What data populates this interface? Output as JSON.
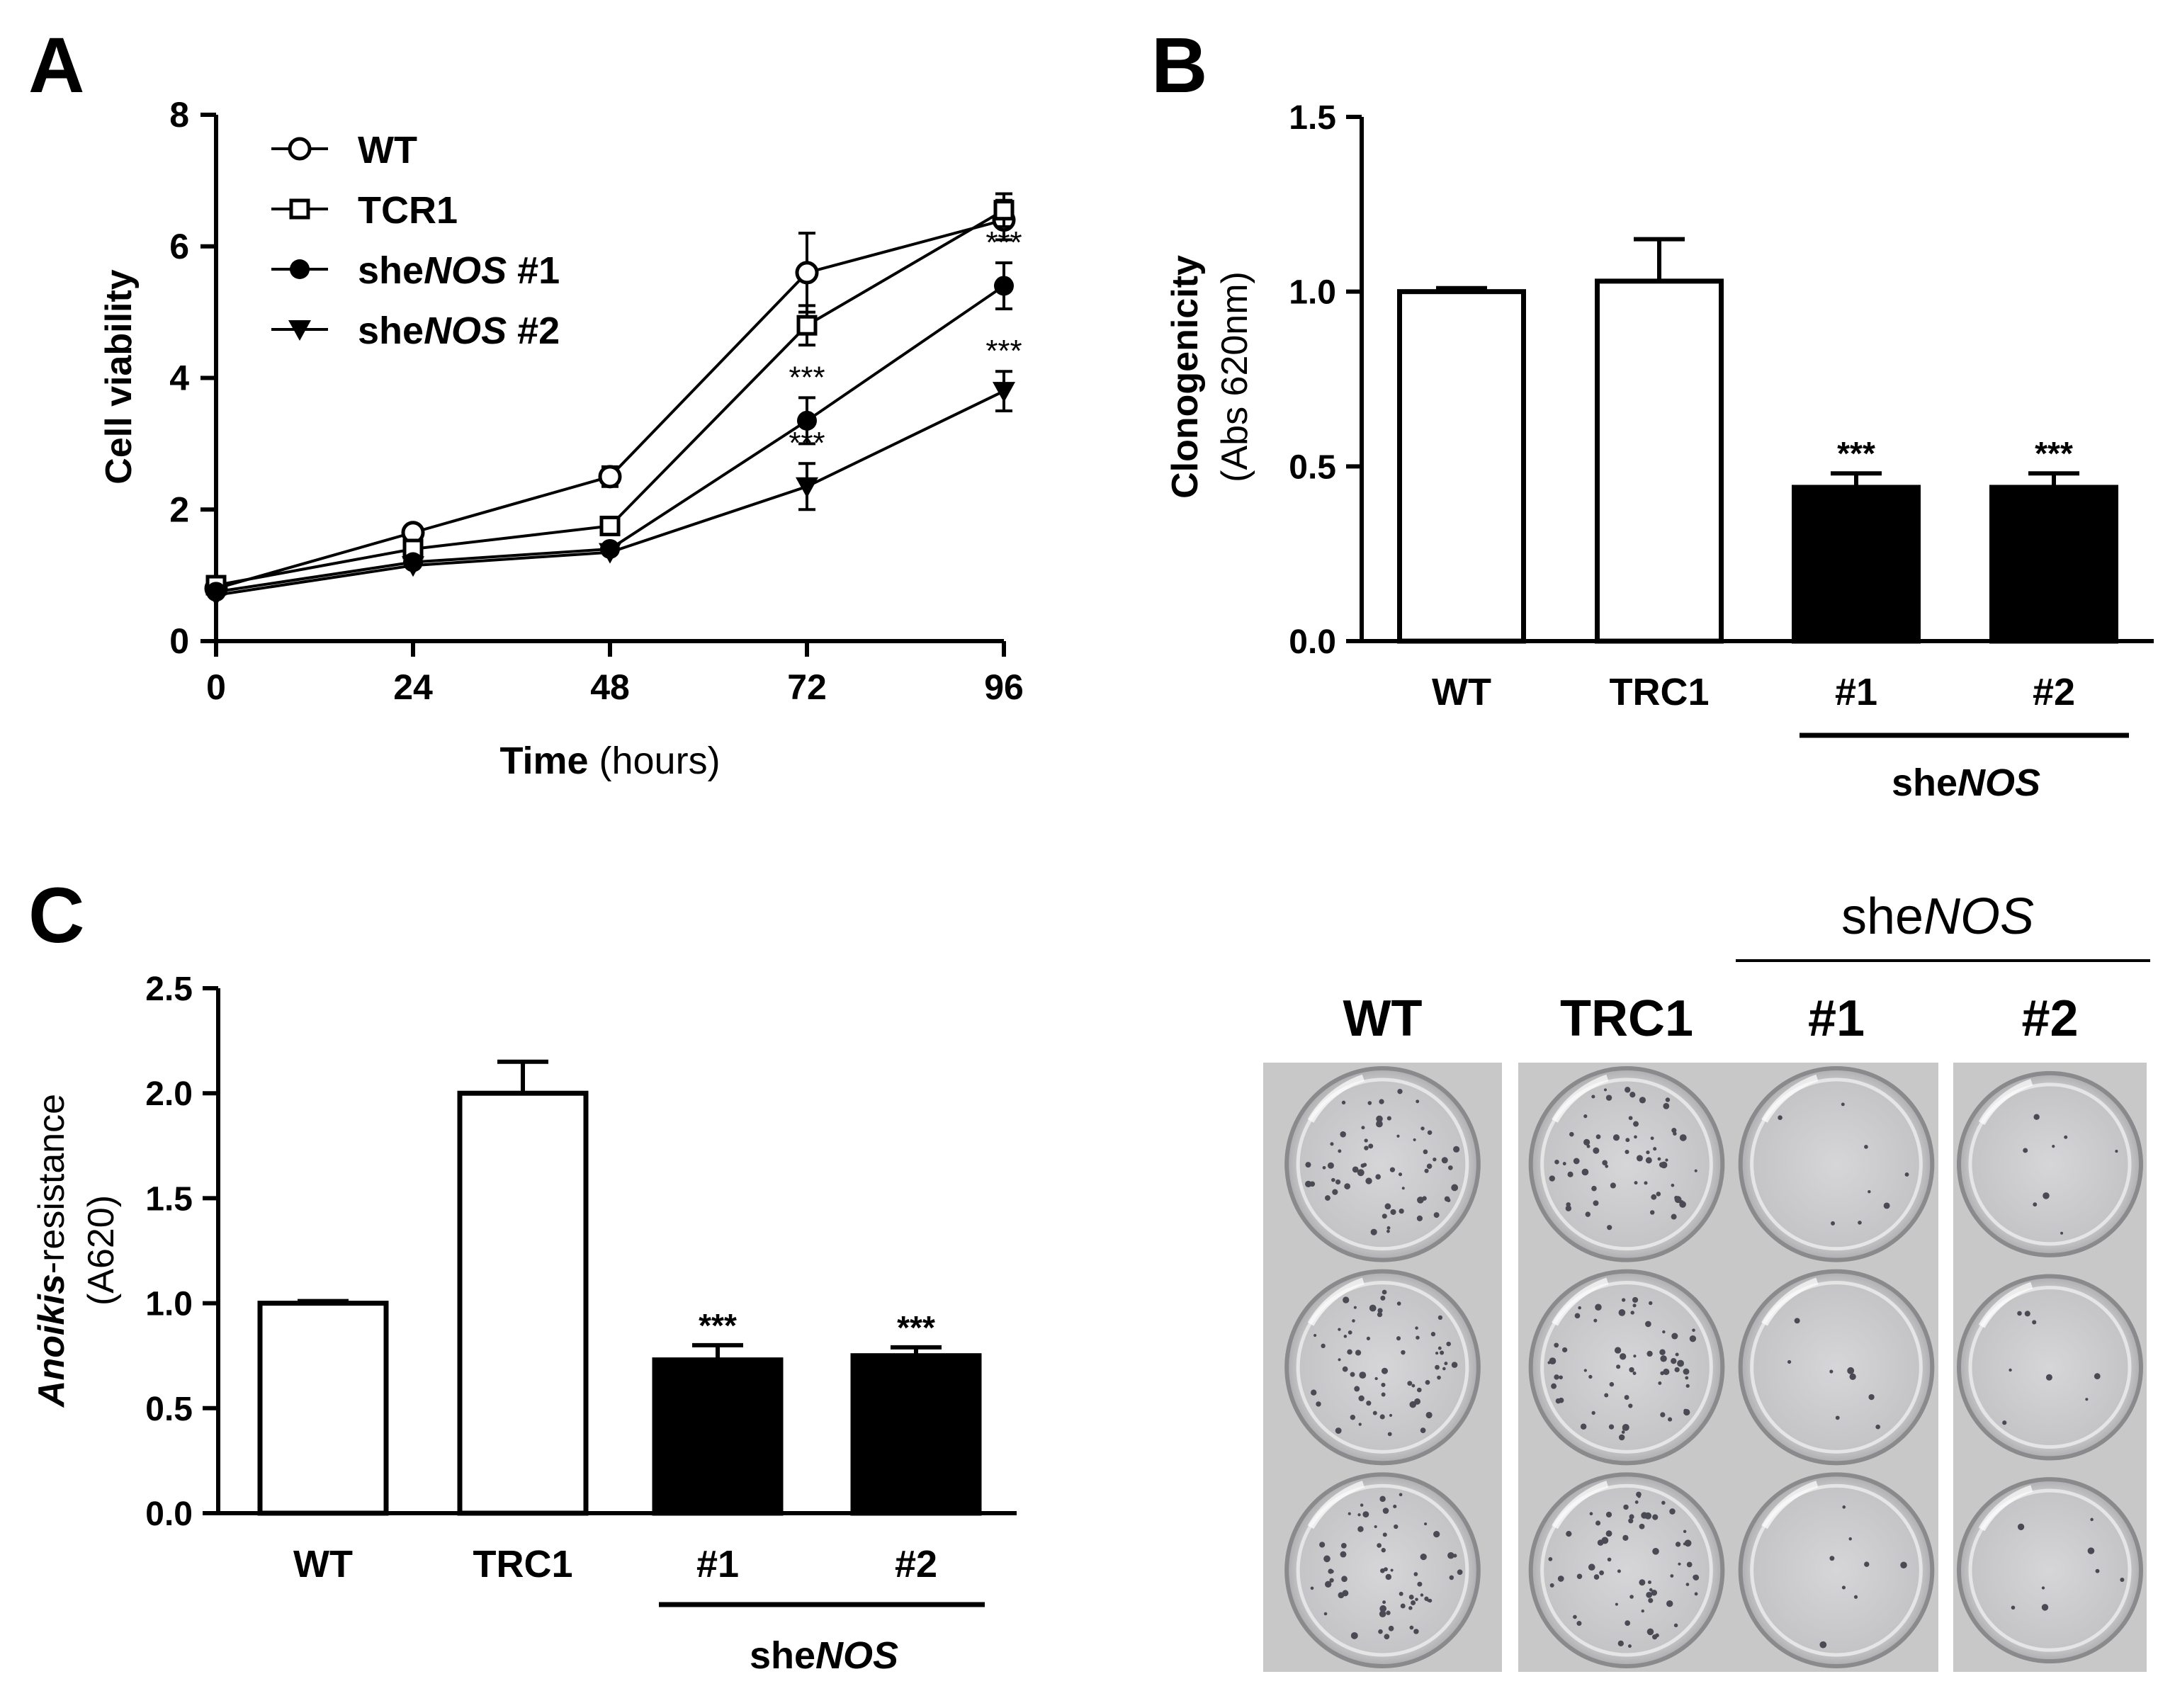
{
  "figure": {
    "panel_labels": [
      "A",
      "B",
      "C"
    ],
    "sig_mark": "***",
    "colors": {
      "black": "#000000",
      "white": "#ffffff",
      "plate_bg": "#c8c8c8"
    }
  },
  "chart_data": [
    {
      "id": "A",
      "type": "line",
      "ylabel": "Cell viability",
      "xlabel_bold": "Time",
      "xlabel_rest": " (hours)",
      "x": [
        0,
        24,
        48,
        72,
        96
      ],
      "xticks": [
        "0",
        "24",
        "48",
        "72",
        "96"
      ],
      "yticks": [
        "0",
        "2",
        "4",
        "6",
        "8"
      ],
      "ylim": [
        0,
        8
      ],
      "xlim": [
        0,
        96
      ],
      "legend_position": "top-left",
      "series": [
        {
          "name": "WT",
          "name_pre": "WT",
          "name_ital": "",
          "name_post": "",
          "marker": "open-circle",
          "values": [
            0.8,
            1.65,
            2.5,
            5.6,
            6.4
          ],
          "errors": [
            0.05,
            0.05,
            0.15,
            0.6,
            0.3
          ]
        },
        {
          "name": "TCR1",
          "name_pre": "TCR1",
          "name_ital": "",
          "name_post": "",
          "marker": "open-square",
          "values": [
            0.85,
            1.4,
            1.75,
            4.8,
            6.55
          ],
          "errors": [
            0.05,
            0.05,
            0.1,
            0.3,
            0.25
          ]
        },
        {
          "name": "sheNOS #1",
          "name_pre": "she",
          "name_ital": "NOS",
          "name_post": " #1",
          "marker": "filled-circle",
          "values": [
            0.75,
            1.2,
            1.4,
            3.35,
            5.4
          ],
          "errors": [
            0.05,
            0.05,
            0.05,
            0.35,
            0.35
          ],
          "sig": [
            "",
            "",
            "",
            "***",
            "***"
          ]
        },
        {
          "name": "sheNOS #2",
          "name_pre": "she",
          "name_ital": "NOS",
          "name_post": " #2",
          "marker": "filled-triangle-down",
          "values": [
            0.7,
            1.15,
            1.35,
            2.35,
            3.8
          ],
          "errors": [
            0.05,
            0.05,
            0.05,
            0.35,
            0.3
          ],
          "sig": [
            "",
            "",
            "",
            "***",
            "***"
          ]
        }
      ]
    },
    {
      "id": "B",
      "type": "bar",
      "ylabel": "Clonogenicity",
      "ylabel2": "(Abs 620nm)",
      "categories": [
        "WT",
        "TRC1",
        "#1",
        "#2"
      ],
      "values": [
        1.0,
        1.03,
        0.44,
        0.44
      ],
      "errors": [
        0.01,
        0.12,
        0.04,
        0.04
      ],
      "fills": [
        "white",
        "white",
        "black",
        "black"
      ],
      "sig": [
        "",
        "",
        "***",
        "***"
      ],
      "yticks": [
        "0.0",
        "0.5",
        "1.0",
        "1.5"
      ],
      "ylim": [
        0,
        1.5
      ],
      "group_label_pre": "she",
      "group_label_ital": "NOS"
    },
    {
      "id": "C",
      "type": "bar",
      "ylabel_ital": "Anoikis",
      "ylabel_rest": "-resistance",
      "ylabel2": "(A620)",
      "categories": [
        "WT",
        "TRC1",
        "#1",
        "#2"
      ],
      "values": [
        1.0,
        2.0,
        0.73,
        0.75
      ],
      "errors": [
        0.01,
        0.15,
        0.07,
        0.04
      ],
      "fills": [
        "white",
        "white",
        "black",
        "black"
      ],
      "sig": [
        "",
        "",
        "***",
        "***"
      ],
      "yticks": [
        "0.0",
        "0.5",
        "1.0",
        "1.5",
        "2.0",
        "2.5"
      ],
      "ylim": [
        0,
        2.5
      ],
      "group_label_pre": "she",
      "group_label_ital": "NOS"
    }
  ],
  "photo": {
    "group_label_pre": "she",
    "group_label_ital": "NOS",
    "columns": [
      "WT",
      "TRC1",
      "#1",
      "#2"
    ],
    "colony_density": [
      "high",
      "high",
      "low",
      "low"
    ]
  }
}
